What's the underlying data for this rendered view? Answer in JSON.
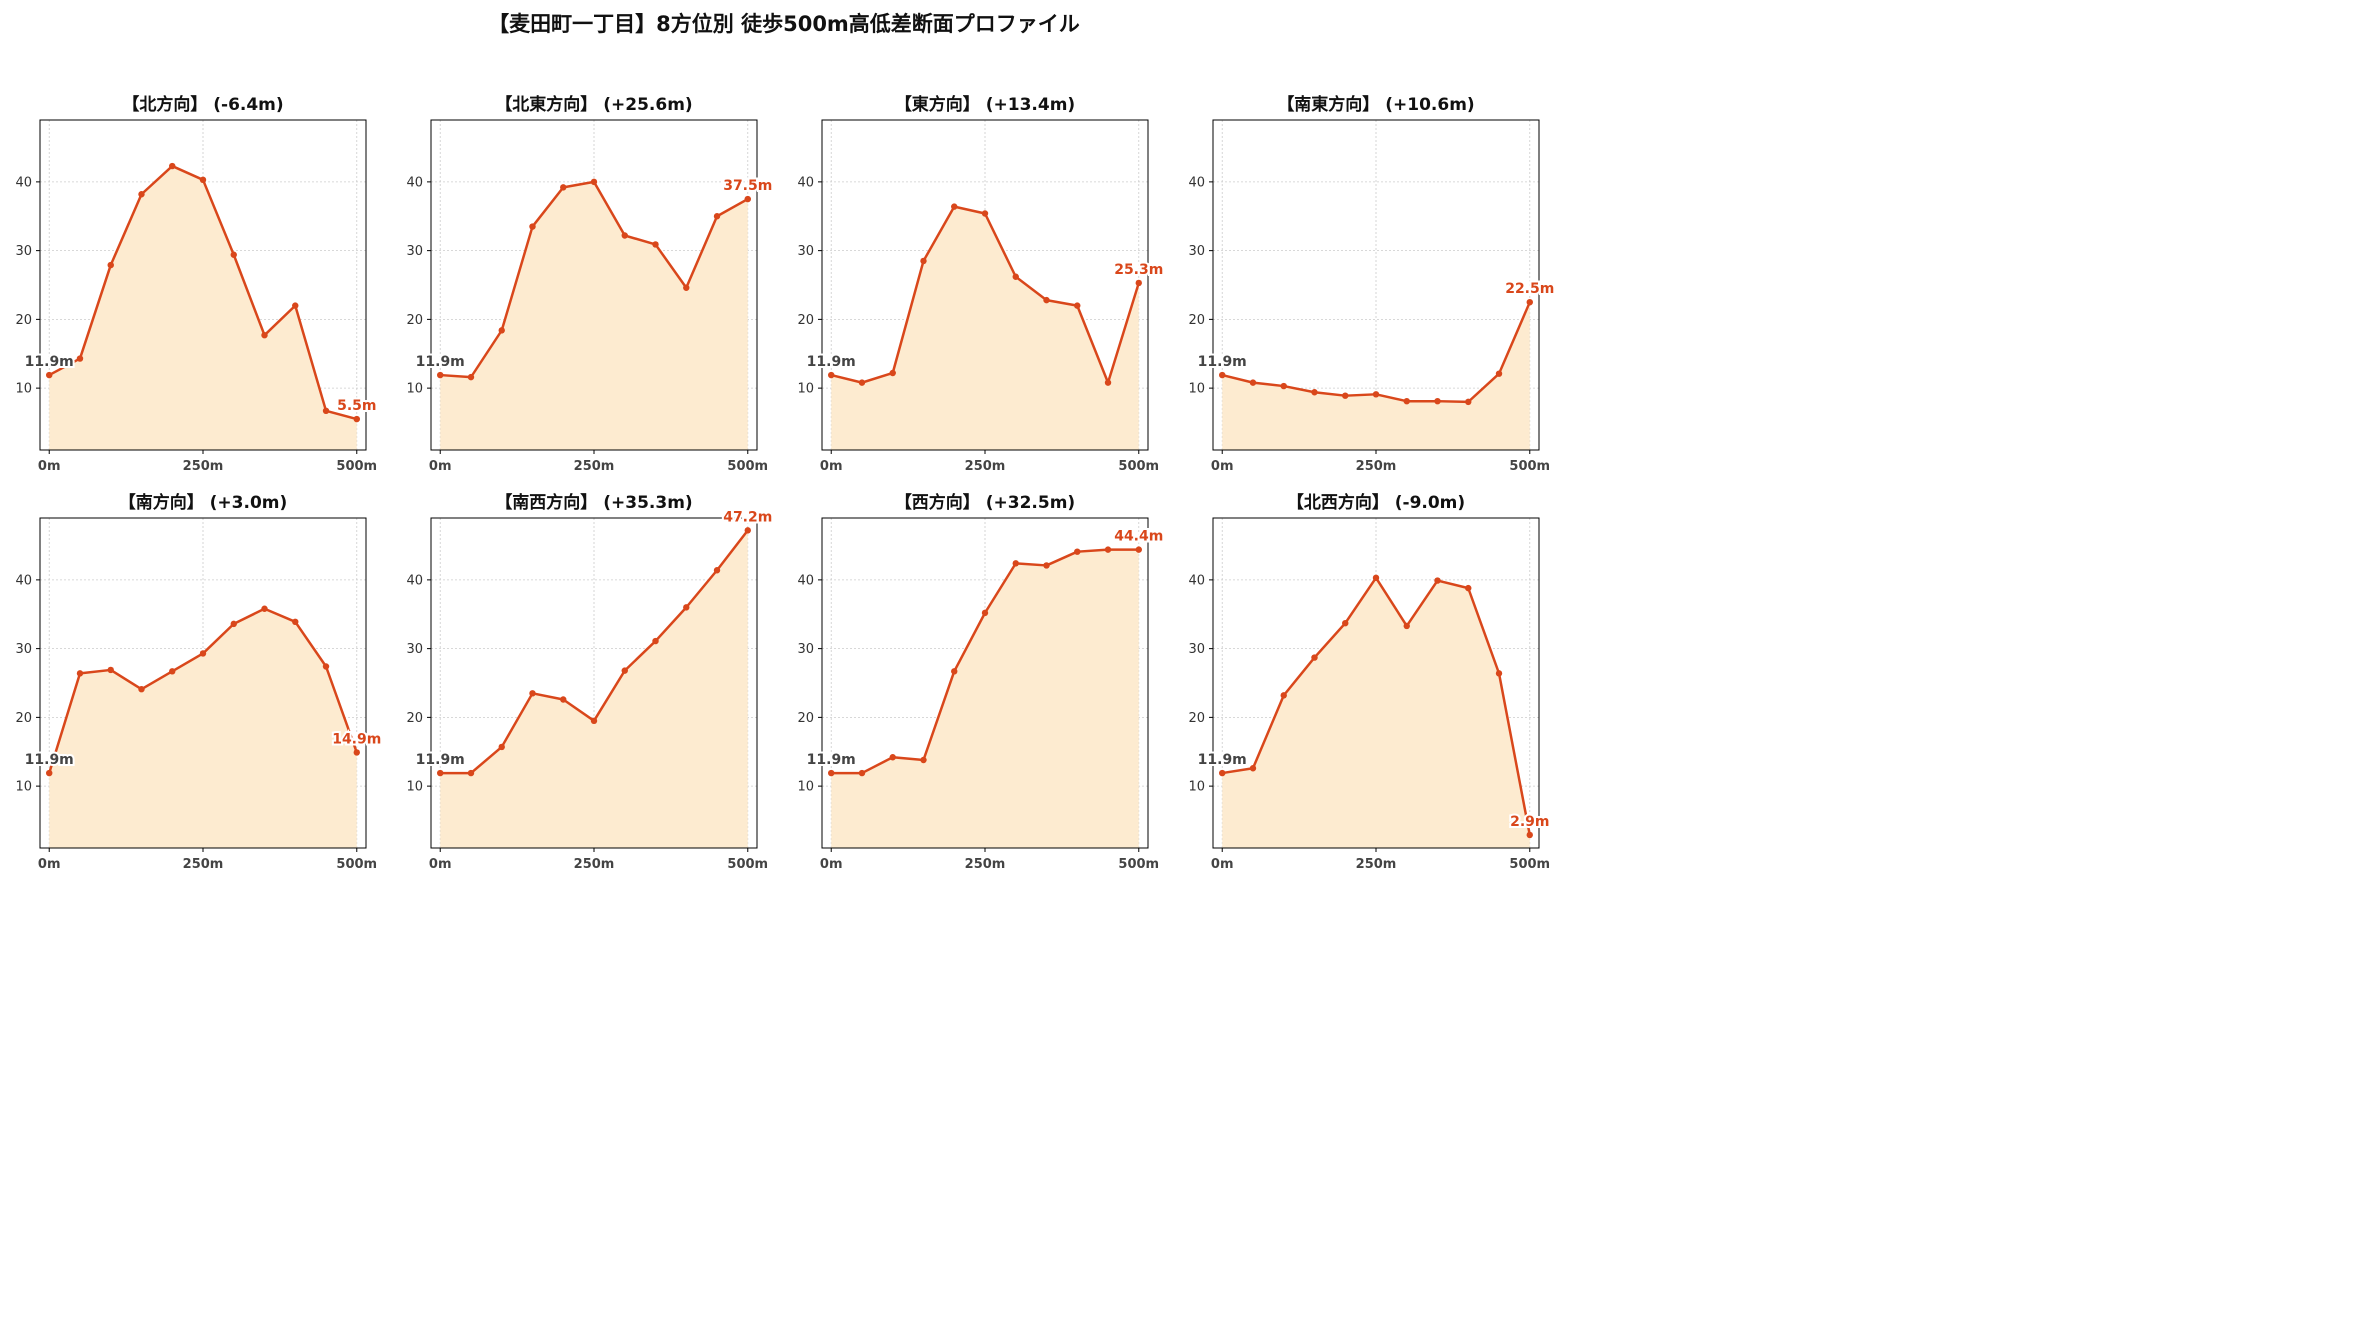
{
  "title": "【麦田町一丁目】8方位別 徒歩500m高低差断面プロファイル",
  "colors": {
    "line": "#d9471b",
    "fill": "#fdebd0",
    "start_label": "#444444",
    "end_label": "#d9471b",
    "grid": "#cccccc",
    "axis": "#000000"
  },
  "chart_data": [
    {
      "type": "area",
      "title": "【北方向】 (-6.4m)",
      "x": [
        0,
        50,
        100,
        150,
        200,
        250,
        300,
        350,
        400,
        450,
        500
      ],
      "y": [
        11.9,
        14.3,
        27.9,
        38.2,
        42.3,
        40.3,
        29.4,
        17.7,
        22.0,
        6.7,
        5.5
      ],
      "start_label": "11.9m",
      "end_label": "5.5m",
      "xticks": [
        0,
        250,
        500
      ],
      "xtick_labels": [
        "0m",
        "250m",
        "500m"
      ],
      "yticks": [
        10,
        20,
        30,
        40
      ],
      "xlim": [
        -15,
        515
      ],
      "ylim": [
        1,
        49
      ],
      "grid": true
    },
    {
      "type": "area",
      "title": "【北東方向】 (+25.6m)",
      "x": [
        0,
        50,
        100,
        150,
        200,
        250,
        300,
        350,
        400,
        450,
        500
      ],
      "y": [
        11.9,
        11.6,
        18.4,
        33.5,
        39.2,
        40.0,
        32.2,
        30.9,
        24.6,
        35.0,
        37.5
      ],
      "start_label": "11.9m",
      "end_label": "37.5m",
      "xticks": [
        0,
        250,
        500
      ],
      "xtick_labels": [
        "0m",
        "250m",
        "500m"
      ],
      "yticks": [
        10,
        20,
        30,
        40
      ],
      "xlim": [
        -15,
        515
      ],
      "ylim": [
        1,
        49
      ],
      "grid": true
    },
    {
      "type": "area",
      "title": "【東方向】 (+13.4m)",
      "x": [
        0,
        50,
        100,
        150,
        200,
        250,
        300,
        350,
        400,
        450,
        500
      ],
      "y": [
        11.9,
        10.8,
        12.2,
        28.5,
        36.4,
        35.4,
        26.2,
        22.8,
        22.0,
        10.8,
        25.3
      ],
      "start_label": "11.9m",
      "end_label": "25.3m",
      "xticks": [
        0,
        250,
        500
      ],
      "xtick_labels": [
        "0m",
        "250m",
        "500m"
      ],
      "yticks": [
        10,
        20,
        30,
        40
      ],
      "xlim": [
        -15,
        515
      ],
      "ylim": [
        1,
        49
      ],
      "grid": true
    },
    {
      "type": "area",
      "title": "【南東方向】 (+10.6m)",
      "x": [
        0,
        50,
        100,
        150,
        200,
        250,
        300,
        350,
        400,
        450,
        500
      ],
      "y": [
        11.9,
        10.8,
        10.3,
        9.4,
        8.9,
        9.1,
        8.1,
        8.1,
        8.0,
        12.1,
        22.5
      ],
      "start_label": "11.9m",
      "end_label": "22.5m",
      "xticks": [
        0,
        250,
        500
      ],
      "xtick_labels": [
        "0m",
        "250m",
        "500m"
      ],
      "yticks": [
        10,
        20,
        30,
        40
      ],
      "xlim": [
        -15,
        515
      ],
      "ylim": [
        1,
        49
      ],
      "grid": true
    },
    {
      "type": "area",
      "title": "【南方向】 (+3.0m)",
      "x": [
        0,
        50,
        100,
        150,
        200,
        250,
        300,
        350,
        400,
        450,
        500
      ],
      "y": [
        11.9,
        26.4,
        26.9,
        24.1,
        26.7,
        29.3,
        33.6,
        35.8,
        33.9,
        27.4,
        14.9
      ],
      "start_label": "11.9m",
      "end_label": "14.9m",
      "xticks": [
        0,
        250,
        500
      ],
      "xtick_labels": [
        "0m",
        "250m",
        "500m"
      ],
      "yticks": [
        10,
        20,
        30,
        40
      ],
      "xlim": [
        -15,
        515
      ],
      "ylim": [
        1,
        49
      ],
      "grid": true
    },
    {
      "type": "area",
      "title": "【南西方向】 (+35.3m)",
      "x": [
        0,
        50,
        100,
        150,
        200,
        250,
        300,
        350,
        400,
        450,
        500
      ],
      "y": [
        11.9,
        11.9,
        15.7,
        23.5,
        22.6,
        19.5,
        26.8,
        31.1,
        36.0,
        41.4,
        47.2
      ],
      "start_label": "11.9m",
      "end_label": "47.2m",
      "xticks": [
        0,
        250,
        500
      ],
      "xtick_labels": [
        "0m",
        "250m",
        "500m"
      ],
      "yticks": [
        10,
        20,
        30,
        40
      ],
      "xlim": [
        -15,
        515
      ],
      "ylim": [
        1,
        49
      ],
      "grid": true
    },
    {
      "type": "area",
      "title": "【西方向】 (+32.5m)",
      "x": [
        0,
        50,
        100,
        150,
        200,
        250,
        300,
        350,
        400,
        450,
        500
      ],
      "y": [
        11.9,
        11.9,
        14.2,
        13.8,
        26.7,
        35.2,
        42.4,
        42.1,
        44.1,
        44.4,
        44.4
      ],
      "start_label": "11.9m",
      "end_label": "44.4m",
      "xticks": [
        0,
        250,
        500
      ],
      "xtick_labels": [
        "0m",
        "250m",
        "500m"
      ],
      "yticks": [
        10,
        20,
        30,
        40
      ],
      "xlim": [
        -15,
        515
      ],
      "ylim": [
        1,
        49
      ],
      "grid": true
    },
    {
      "type": "area",
      "title": "【北西方向】 (-9.0m)",
      "x": [
        0,
        50,
        100,
        150,
        200,
        250,
        300,
        350,
        400,
        450,
        500
      ],
      "y": [
        11.9,
        12.6,
        23.2,
        28.7,
        33.7,
        40.3,
        33.3,
        39.9,
        38.8,
        26.4,
        2.9
      ],
      "start_label": "11.9m",
      "end_label": "2.9m",
      "xticks": [
        0,
        250,
        500
      ],
      "xtick_labels": [
        "0m",
        "250m",
        "500m"
      ],
      "yticks": [
        10,
        20,
        30,
        40
      ],
      "xlim": [
        -15,
        515
      ],
      "ylim": [
        1,
        49
      ],
      "grid": true
    }
  ]
}
